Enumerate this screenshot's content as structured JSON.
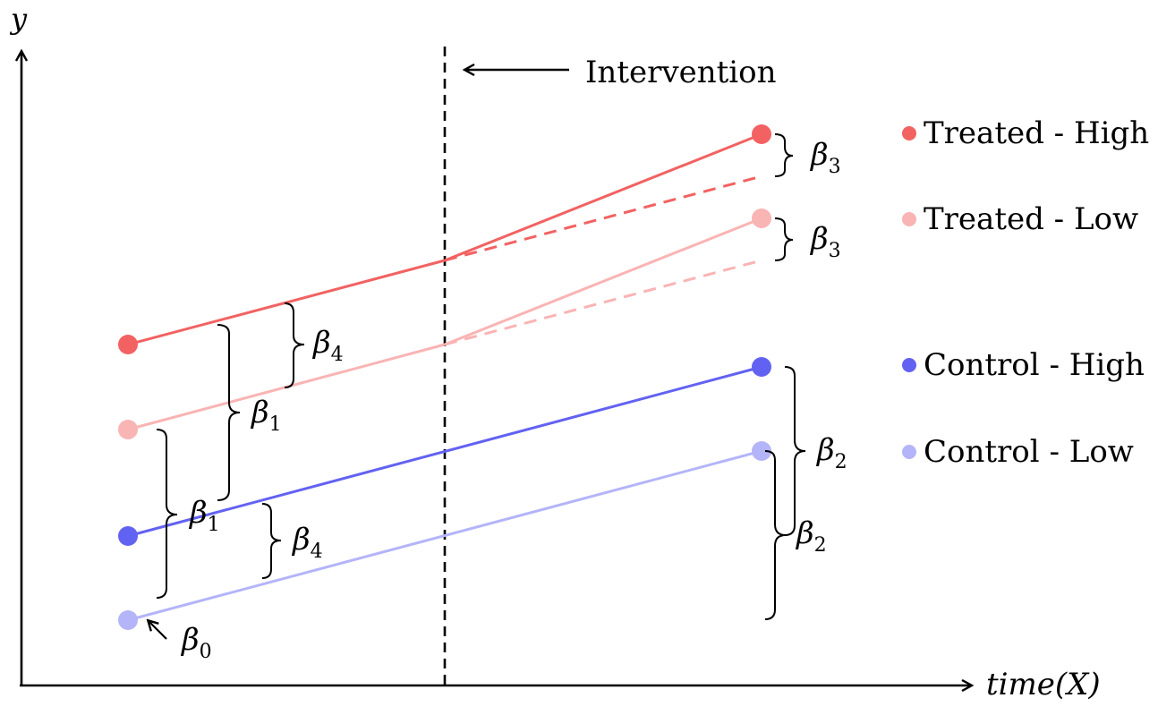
{
  "axes": {
    "y_label": "y",
    "x_label": "time(X)"
  },
  "intervention_label": "Intervention",
  "legend": [
    {
      "label": "Treated - High",
      "color": "#f26262"
    },
    {
      "label": "Treated - Low",
      "color": "#f9b4b4"
    },
    {
      "label": "Control - High",
      "color": "#6262f2"
    },
    {
      "label": "Control - Low",
      "color": "#b4b4f9"
    }
  ],
  "coefficients": {
    "beta_symbol": "β",
    "b0": "0",
    "b1": "1",
    "b2": "2",
    "b3": "3",
    "b4": "4"
  }
}
